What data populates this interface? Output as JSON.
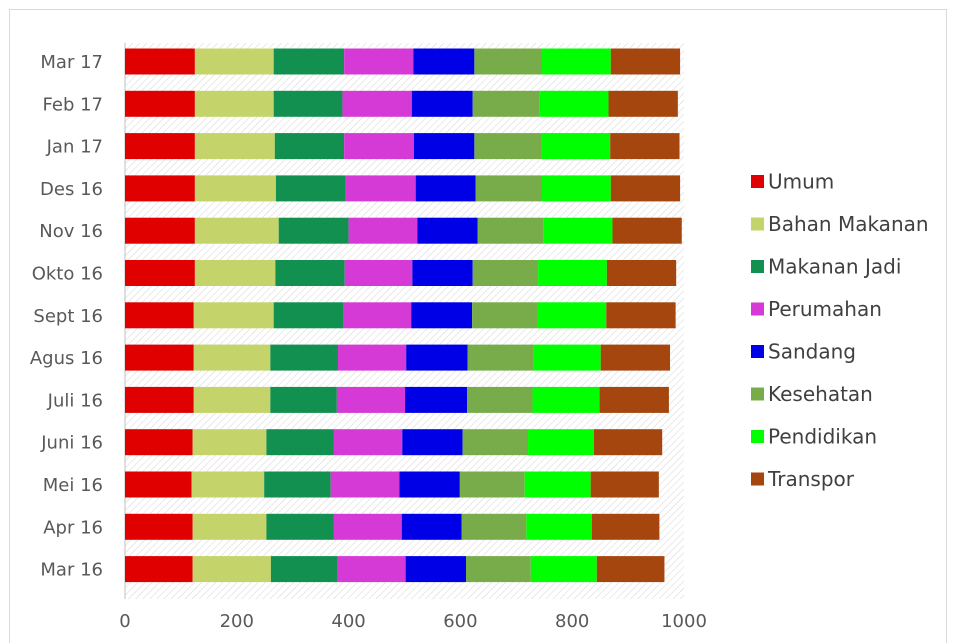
{
  "chart_data": {
    "type": "bar",
    "orientation": "horizontal",
    "stacked": true,
    "categories": [
      "Mar 17",
      "Feb 17",
      "Jan 17",
      "Des 16",
      "Nov 16",
      "Okto 16",
      "Sept 16",
      "Agus 16",
      "Juli 16",
      "Juni 16",
      "Mei 16",
      "Apr 16",
      "Mar 16"
    ],
    "xlim": [
      0,
      1000
    ],
    "xticks": [
      "0",
      "200",
      "400",
      "600",
      "800",
      "1000"
    ],
    "legend_position": "right",
    "series": [
      {
        "name": "Umum",
        "color": "#e00000",
        "values": [
          125,
          125,
          125,
          125,
          125,
          125,
          123,
          123,
          123,
          121,
          119,
          121,
          121
        ]
      },
      {
        "name": "Bahan Makanan",
        "color": "#c4d36a",
        "values": [
          141,
          141,
          143,
          145,
          150,
          144,
          143,
          137,
          137,
          132,
          130,
          132,
          140
        ]
      },
      {
        "name": "Makanan Jadi",
        "color": "#119050",
        "values": [
          126,
          123,
          124,
          125,
          125,
          124,
          124,
          121,
          119,
          120,
          119,
          120,
          119
        ]
      },
      {
        "name": "Perumahan",
        "color": "#d63ad6",
        "values": [
          124,
          124,
          125,
          125,
          123,
          121,
          122,
          122,
          122,
          123,
          123,
          122,
          122
        ]
      },
      {
        "name": "Sandang",
        "color": "#0000e6",
        "values": [
          109,
          109,
          108,
          107,
          108,
          108,
          109,
          110,
          111,
          108,
          108,
          107,
          108
        ]
      },
      {
        "name": "Kesehatan",
        "color": "#78ac4a",
        "values": [
          121,
          120,
          120,
          119,
          118,
          117,
          117,
          117,
          117,
          117,
          116,
          116,
          116
        ]
      },
      {
        "name": "Pendidikan",
        "color": "#00ff00",
        "values": [
          123,
          123,
          123,
          123,
          123,
          123,
          123,
          121,
          120,
          118,
          118,
          117,
          118
        ]
      },
      {
        "name": "Transpor",
        "color": "#a5460f",
        "values": [
          124,
          124,
          124,
          124,
          124,
          124,
          124,
          124,
          124,
          122,
          122,
          121,
          121
        ]
      }
    ]
  }
}
